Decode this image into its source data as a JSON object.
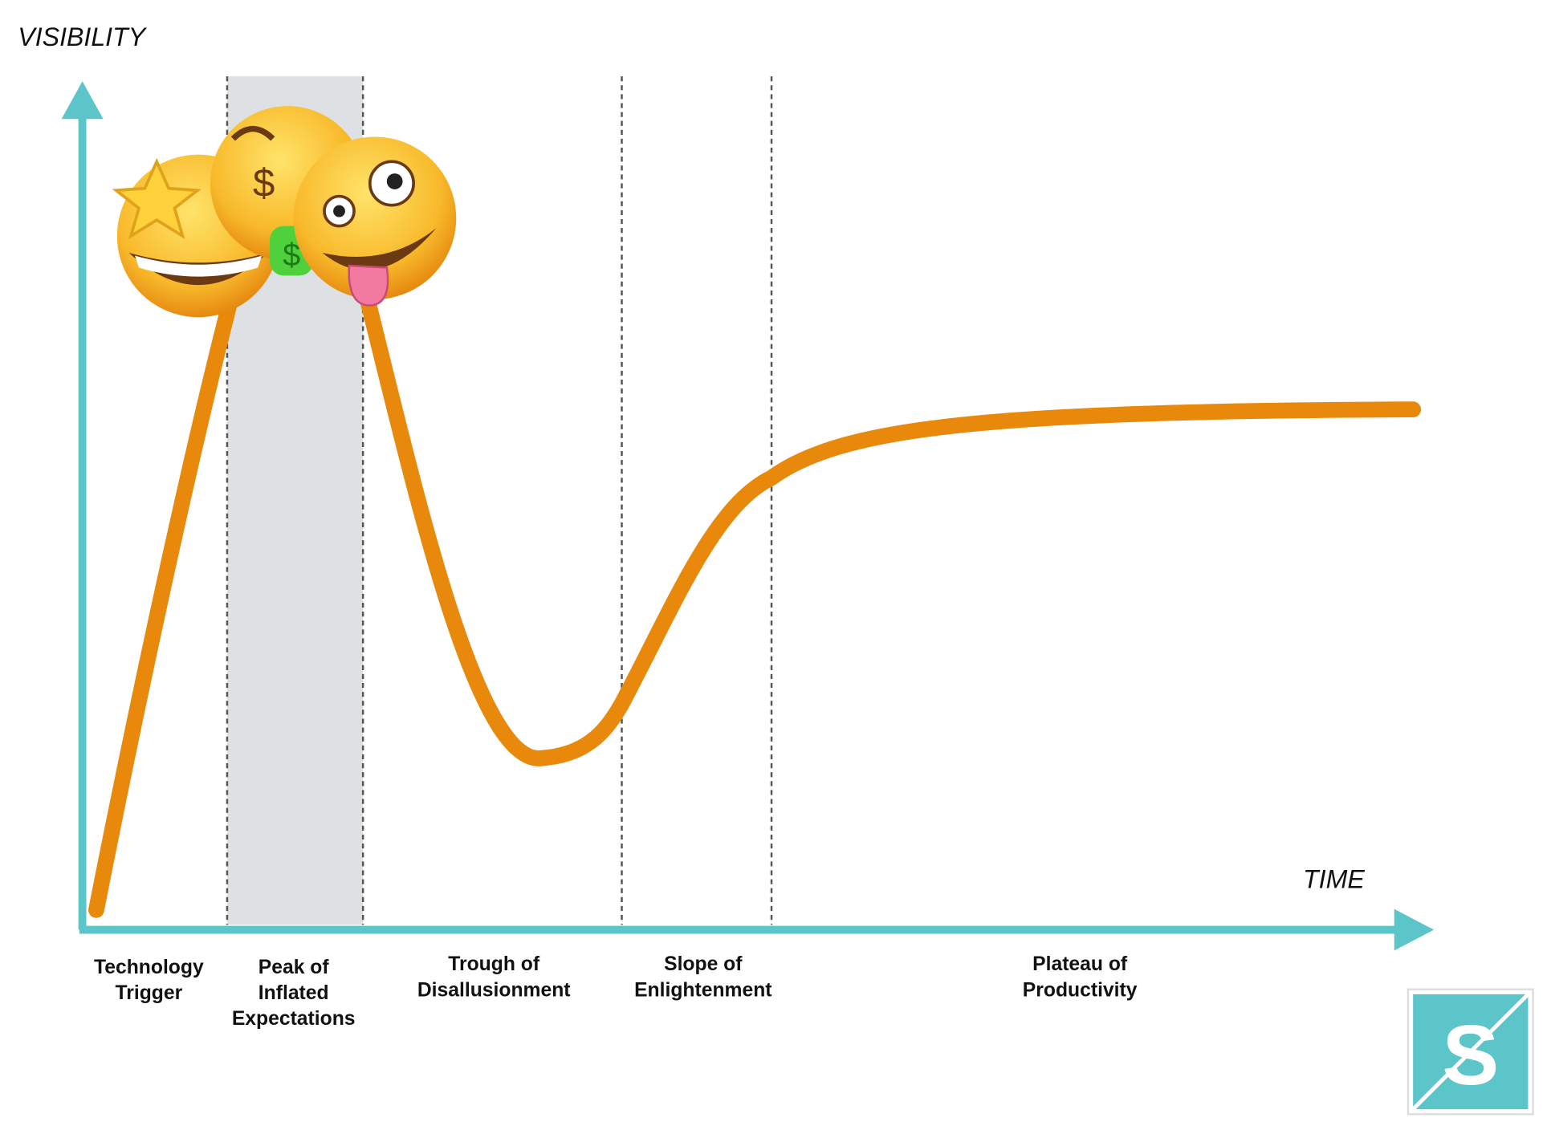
{
  "axes": {
    "y_label": "VISIBILITY",
    "x_label": "TIME"
  },
  "phases": [
    {
      "lines": [
        "Technology",
        "Trigger"
      ]
    },
    {
      "lines": [
        "Peak of",
        "Inflated",
        "Expectations"
      ]
    },
    {
      "lines": [
        "Trough of",
        "Disallusionment"
      ]
    },
    {
      "lines": [
        "Slope of",
        "Enlightenment"
      ]
    },
    {
      "lines": [
        "Plateau of",
        "Productivity"
      ]
    }
  ]
}
